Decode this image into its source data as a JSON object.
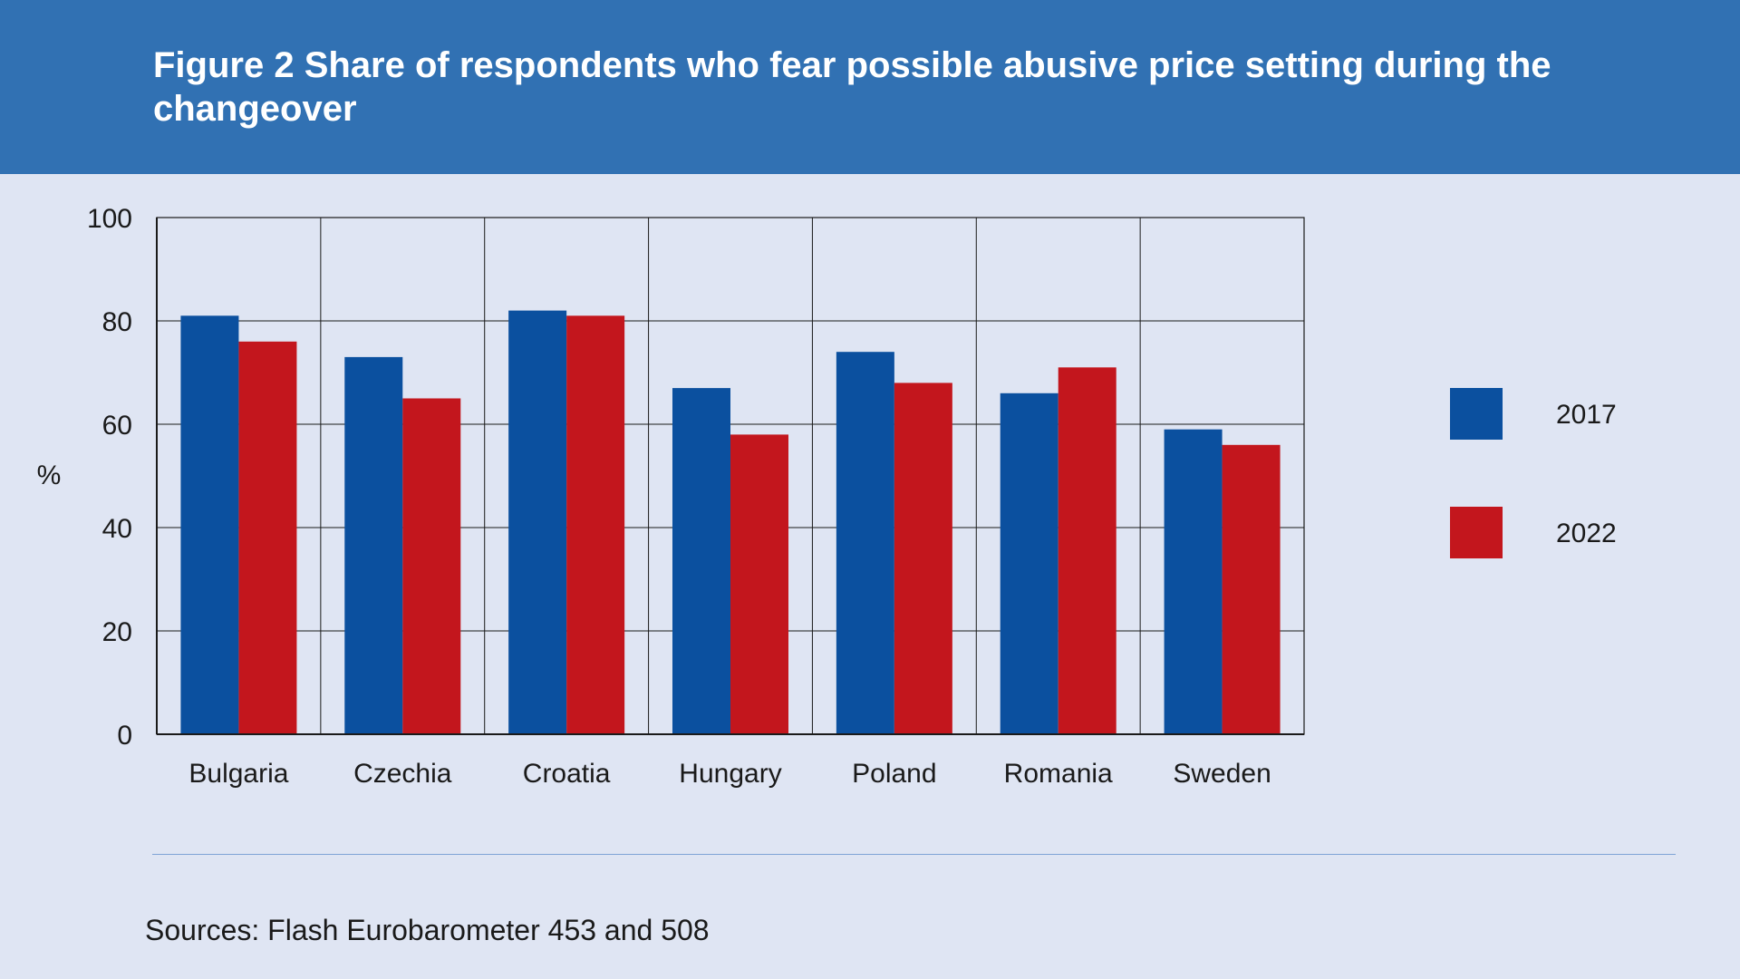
{
  "header": {
    "title": "Figure 2 Share of respondents who fear possible abusive price setting during the changeover"
  },
  "colors": {
    "header_bg": "#3171b3",
    "background": "#dfe5f3",
    "series_2017": "#0b509f",
    "series_2022": "#c3161d",
    "gridline": "#1a1a1a"
  },
  "chart_data": {
    "type": "bar",
    "title": "Figure 2 Share of respondents who fear possible abusive price setting during the changeover",
    "xlabel": "",
    "ylabel": "%",
    "ylim": [
      0,
      100
    ],
    "yticks": [
      0,
      20,
      40,
      60,
      80,
      100
    ],
    "grid": true,
    "legend_position": "right",
    "categories": [
      "Bulgaria",
      "Czechia",
      "Croatia",
      "Hungary",
      "Poland",
      "Romania",
      "Sweden"
    ],
    "series": [
      {
        "name": "2017",
        "color": "#0b509f",
        "values": [
          81,
          73,
          82,
          67,
          74,
          66,
          59
        ]
      },
      {
        "name": "2022",
        "color": "#c3161d",
        "values": [
          76,
          65,
          81,
          58,
          68,
          71,
          56
        ]
      }
    ]
  },
  "footer": {
    "source": "Sources: Flash Eurobarometer 453 and 508"
  }
}
